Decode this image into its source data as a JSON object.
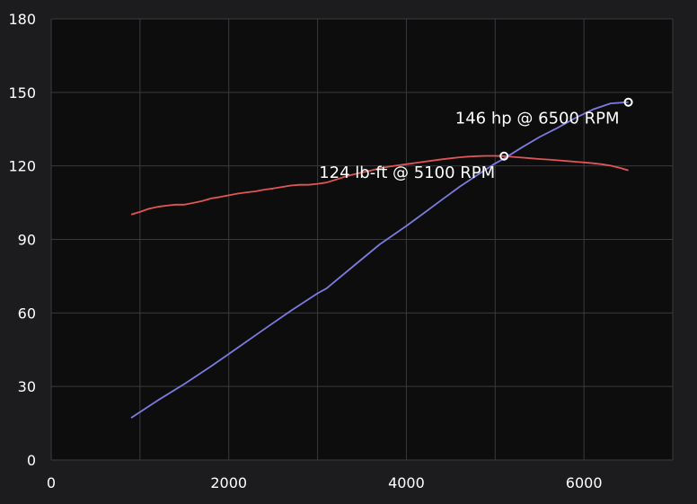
{
  "colors": {
    "background": "#1c1c1e",
    "plot_background": "#0e0d0e",
    "grid": "#3a3a3c",
    "torque": "#e05555",
    "power": "#7b7be0",
    "marker": "#ffffff",
    "text": "#ffffff"
  },
  "chart_data": {
    "type": "line",
    "title": "",
    "xlabel": "",
    "ylabel": "",
    "xlim": [
      0,
      7000
    ],
    "ylim": [
      0,
      180
    ],
    "grid": true,
    "legend": "none",
    "xticks": [
      {
        "value": 0,
        "label": "0"
      },
      {
        "value": 2000,
        "label": "2000"
      },
      {
        "value": 4000,
        "label": "4000"
      },
      {
        "value": 6000,
        "label": "6000"
      }
    ],
    "xgrid": [
      1000,
      2000,
      3000,
      4000,
      5000,
      6000,
      7000
    ],
    "yticks": [
      {
        "value": 0,
        "label": "0"
      },
      {
        "value": 30,
        "label": "30"
      },
      {
        "value": 60,
        "label": "60"
      },
      {
        "value": 90,
        "label": "90"
      },
      {
        "value": 120,
        "label": "120"
      },
      {
        "value": 150,
        "label": "150"
      },
      {
        "value": 180,
        "label": "180"
      }
    ],
    "series": [
      {
        "id": "torque",
        "color": "#e05555",
        "x": [
          900,
          1000,
          1100,
          1200,
          1300,
          1400,
          1500,
          1600,
          1700,
          1800,
          1900,
          2000,
          2100,
          2200,
          2300,
          2400,
          2500,
          2600,
          2700,
          2800,
          2900,
          3000,
          3100,
          3200,
          3300,
          3400,
          3500,
          3600,
          3700,
          3800,
          3900,
          4000,
          4100,
          4200,
          4300,
          4400,
          4500,
          4600,
          4700,
          4800,
          4900,
          5000,
          5100,
          5200,
          5300,
          5400,
          5500,
          5600,
          5700,
          5800,
          5900,
          6000,
          6100,
          6200,
          6300,
          6400,
          6500
        ],
        "values": [
          100.2,
          101.2,
          102.5,
          103.3,
          103.8,
          104.2,
          104.2,
          104.9,
          105.7,
          106.7,
          107.3,
          108.0,
          108.7,
          109.2,
          109.6,
          110.3,
          110.8,
          111.4,
          112.0,
          112.3,
          112.3,
          112.7,
          113.2,
          114.3,
          115.5,
          116.5,
          117.3,
          118.1,
          119.0,
          119.7,
          120.2,
          120.7,
          121.2,
          121.7,
          122.2,
          122.7,
          123.1,
          123.5,
          123.8,
          124.0,
          124.1,
          124.1,
          124.0,
          123.7,
          123.4,
          123.1,
          122.8,
          122.6,
          122.3,
          122.0,
          121.7,
          121.4,
          121.1,
          120.7,
          120.1,
          119.2,
          118.2
        ]
      },
      {
        "id": "power",
        "color": "#7b7be0",
        "x": [
          900,
          1200,
          1500,
          1800,
          2100,
          2400,
          2700,
          3000,
          3100,
          3400,
          3700,
          4000,
          4200,
          4400,
          4600,
          4800,
          5000,
          5100,
          5300,
          5500,
          5700,
          5900,
          6100,
          6300,
          6500
        ],
        "values": [
          17.2,
          24.3,
          31.0,
          38.2,
          45.8,
          53.4,
          60.9,
          68.0,
          70.0,
          79.0,
          88.0,
          95.5,
          100.8,
          106.2,
          111.5,
          116.3,
          121.0,
          123.0,
          127.5,
          131.8,
          135.5,
          139.5,
          143.0,
          145.5,
          146.0
        ]
      }
    ],
    "annotations": [
      {
        "id": "power-peak",
        "x": 6500,
        "y": 146,
        "text": "146 hp @ 6500 RPM",
        "anchor": "end"
      },
      {
        "id": "torque-peak",
        "x": 5100,
        "y": 124,
        "text": "124 lb-ft @ 5100 RPM",
        "anchor": "end"
      }
    ]
  }
}
